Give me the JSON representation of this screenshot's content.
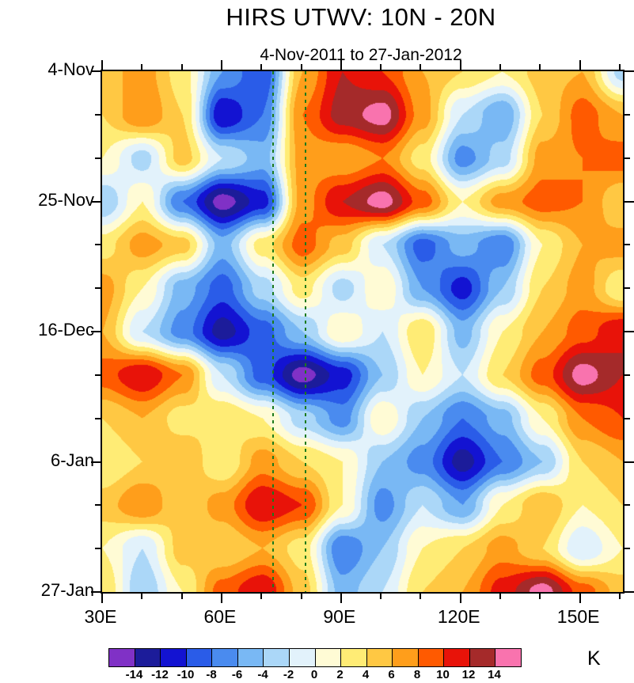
{
  "chart_data": {
    "type": "heatmap",
    "title": "HIRS UTWV: 10N - 20N",
    "subtitle": "4-Nov-2011 to 27-Jan-2012",
    "value_units": "K",
    "x_axis": {
      "kind": "longitude",
      "domain": [
        30,
        160.8
      ],
      "major": [
        30,
        60,
        90,
        120,
        150
      ],
      "major_labels": [
        "30E",
        "60E",
        "90E",
        "120E",
        "150E"
      ],
      "minor": [
        40,
        50,
        70,
        80,
        100,
        110,
        130,
        140,
        160
      ]
    },
    "y_axis": {
      "kind": "time",
      "domain_days": [
        0,
        84
      ],
      "major_days": [
        0,
        21,
        42,
        63,
        84
      ],
      "major_labels": [
        "4-Nov",
        "25-Nov",
        "16-Dec",
        "6-Jan",
        "27-Jan"
      ],
      "minor_days": [
        7,
        14,
        28,
        35,
        49,
        56,
        70,
        77
      ]
    },
    "reference_lines": {
      "color": "#1c7a1c",
      "style": "dashed",
      "lons": [
        73,
        81
      ]
    },
    "grid_lons": [
      30,
      40,
      50,
      60,
      70,
      80,
      90,
      100,
      110,
      120,
      130,
      140,
      150,
      160
    ],
    "grid_days": [
      0,
      7,
      14,
      21,
      28,
      35,
      42,
      49,
      56,
      63,
      70,
      77,
      84
    ],
    "values": [
      [
        5,
        7,
        3,
        -6,
        -10,
        6,
        12,
        10,
        6,
        4,
        2,
        5,
        6,
        -3
      ],
      [
        4,
        8,
        4,
        -12,
        -8,
        8,
        13,
        15,
        7,
        -2,
        -6,
        4,
        9,
        6
      ],
      [
        2,
        -3,
        5,
        -2,
        -5,
        7,
        6,
        8,
        3,
        -7,
        -3,
        7,
        8,
        9
      ],
      [
        -4,
        2,
        -8,
        -15,
        -11,
        7,
        12,
        15,
        9,
        2,
        7,
        9,
        8,
        4
      ],
      [
        3,
        7,
        5,
        -5,
        3,
        9,
        5,
        -2,
        -9,
        -5,
        -8,
        2,
        6,
        7
      ],
      [
        7,
        2,
        -5,
        -9,
        -3,
        3,
        -3,
        2,
        -6,
        -11,
        -4,
        4,
        7,
        2
      ],
      [
        6,
        -2,
        -7,
        -13,
        -9,
        -4,
        2,
        -2,
        4,
        -5,
        2,
        6,
        9,
        12
      ],
      [
        9,
        12,
        8,
        -2,
        -9,
        -15,
        -11,
        -4,
        2,
        -2,
        4,
        9,
        15,
        12
      ],
      [
        4,
        6,
        3,
        4,
        2,
        -3,
        -7,
        2,
        -4,
        -8,
        -5,
        2,
        8,
        10
      ],
      [
        2,
        4,
        6,
        2,
        7,
        4,
        2,
        -4,
        -7,
        -13,
        -8,
        -4,
        4,
        6
      ],
      [
        5,
        8,
        4,
        7,
        12,
        10,
        2,
        -7,
        -2,
        -6,
        2,
        6,
        2,
        4
      ],
      [
        2,
        -2,
        5,
        4,
        6,
        3,
        -8,
        -4,
        2,
        4,
        7,
        4,
        -2,
        2
      ],
      [
        4,
        -4,
        2,
        9,
        12,
        5,
        -5,
        -2,
        4,
        6,
        11,
        15,
        9,
        5
      ]
    ],
    "colorbar": {
      "unit": "K",
      "levels": [
        -14,
        -12,
        -10,
        -8,
        -6,
        -4,
        -2,
        0,
        2,
        4,
        6,
        8,
        10,
        12,
        14
      ],
      "tick_labels": [
        "-14",
        "-12",
        "-10",
        "-8",
        "-6",
        "-4",
        "-2",
        "0",
        "2",
        "4",
        "6",
        "8",
        "10",
        "12",
        "14"
      ],
      "colors": [
        "#8031c6",
        "#1c1c9a",
        "#1313d2",
        "#2a5ce8",
        "#4a8bef",
        "#79b8f4",
        "#abd7f8",
        "#e2f2fb",
        "#fffbd5",
        "#ffec75",
        "#ffc843",
        "#ff9e1b",
        "#ff5a00",
        "#e81309",
        "#a52a2a",
        "#f973ae"
      ]
    },
    "legend_position": "bottom",
    "grid_on": false
  }
}
